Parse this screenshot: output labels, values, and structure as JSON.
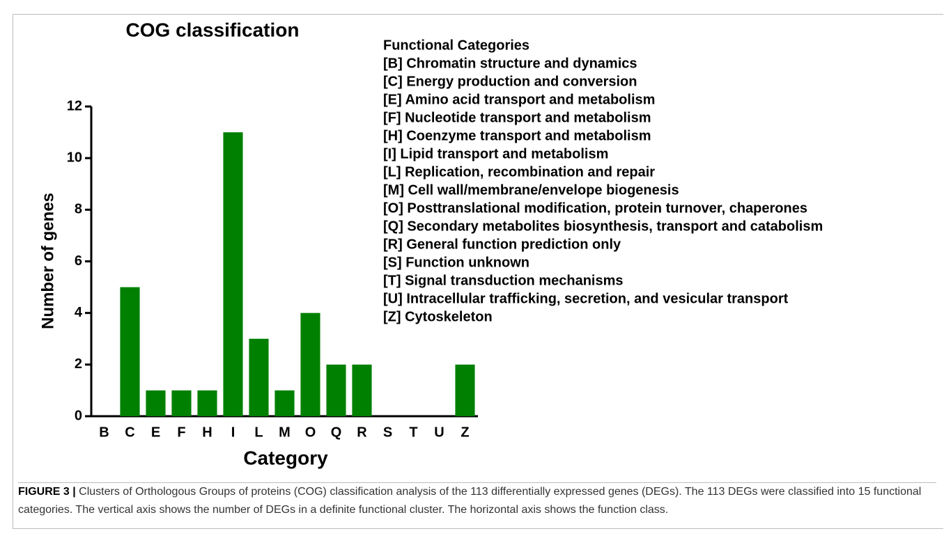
{
  "chart_data": {
    "type": "bar",
    "title": "COG classification",
    "xlabel": "Category",
    "ylabel": "Number of genes",
    "categories": [
      "B",
      "C",
      "E",
      "F",
      "H",
      "I",
      "L",
      "M",
      "O",
      "Q",
      "R",
      "S",
      "T",
      "U",
      "Z"
    ],
    "values": [
      0,
      5,
      1,
      1,
      1,
      11,
      3,
      1,
      4,
      2,
      2,
      0,
      0,
      0,
      2
    ],
    "color": "#008000",
    "ylim": [
      0,
      12
    ],
    "yticks": [
      0,
      2,
      4,
      6,
      8,
      10,
      12
    ],
    "grid": false,
    "legend_title": "Functional Categories",
    "legend_items": [
      "[B] Chromatin structure and dynamics",
      "[C] Energy production and conversion",
      "[E] Amino acid transport and metabolism",
      "[F] Nucleotide transport and metabolism",
      "[H] Coenzyme transport and metabolism",
      "[I] Lipid transport and metabolism",
      "[L] Replication, recombination and repair",
      "[M] Cell wall/membrane/envelope biogenesis",
      "[O] Posttranslational modification, protein turnover, chaperones",
      "[Q] Secondary metabolites biosynthesis, transport and catabolism",
      "[R] General function prediction only",
      "[S] Function unknown",
      "[T] Signal transduction mechanisms",
      "[U] Intracellular trafficking, secretion, and vesicular transport",
      "[Z] Cytoskeleton"
    ]
  },
  "caption": {
    "label": "FIGURE 3 |",
    "text": "Clusters of Orthologous Groups of proteins (COG) classification analysis of the 113 differentially expressed genes (DEGs). The 113 DEGs were classified into 15 functional categories. The vertical axis shows the number of DEGs in a definite functional cluster. The horizontal axis shows the function class."
  }
}
